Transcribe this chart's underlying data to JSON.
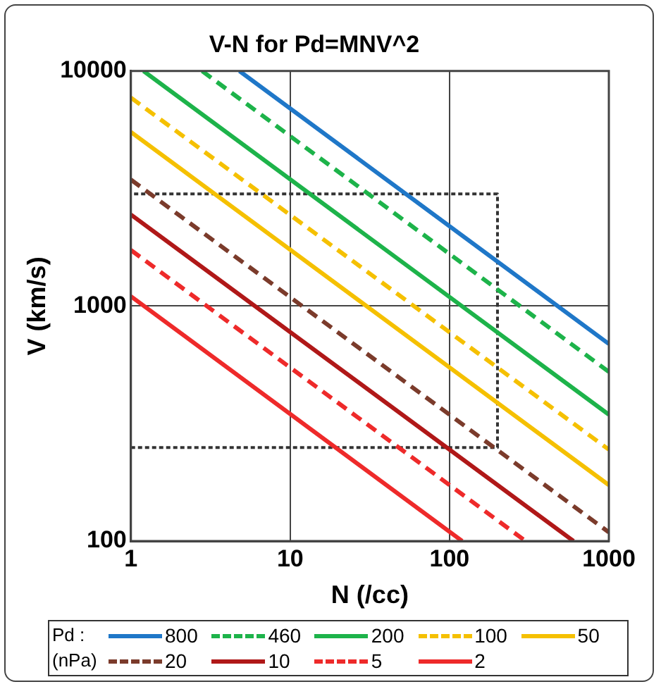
{
  "chart_data": {
    "type": "line",
    "title": "V-N for Pd=MNV^2",
    "xlabel": "N (/cc)",
    "ylabel": "V (km/s)",
    "legend_title": "Pd :\n(nPa)",
    "log": "xy",
    "grid": true,
    "legend": "bottom",
    "marker": "none",
    "xlim": [
      1,
      1000
    ],
    "xticks": [
      1,
      10,
      100,
      1000
    ],
    "ylim": [
      100,
      10000
    ],
    "yticks": [
      100,
      1000,
      10000
    ],
    "series": [
      {
        "name": "800",
        "color": "#1f77c8",
        "line_style": "solid",
        "x": [
          4.8,
          1000
        ],
        "values": [
          10000,
          690
        ]
      },
      {
        "name": "460",
        "color": "#1db34a",
        "line_style": "dashed",
        "x": [
          2.8,
          1000
        ],
        "values": [
          10000,
          525
        ]
      },
      {
        "name": "200",
        "color": "#1db34a",
        "line_style": "solid",
        "x": [
          1.2,
          1000
        ],
        "values": [
          10000,
          345
        ]
      },
      {
        "name": "100",
        "color": "#f5c000",
        "line_style": "dashed",
        "x": [
          1,
          1000
        ],
        "values": [
          7700,
          245
        ]
      },
      {
        "name": "50",
        "color": "#f5c000",
        "line_style": "solid",
        "x": [
          1,
          1000
        ],
        "values": [
          5500,
          173
        ]
      },
      {
        "name": "20",
        "color": "#7b3b2b",
        "line_style": "dashed",
        "x": [
          1,
          1000
        ],
        "values": [
          3450,
          109
        ]
      },
      {
        "name": "10",
        "color": "#b01818",
        "line_style": "solid",
        "x": [
          1,
          600
        ],
        "values": [
          2450,
          100
        ]
      },
      {
        "name": "5",
        "color": "#ee2a2a",
        "line_style": "dashed",
        "x": [
          1,
          300
        ],
        "values": [
          1730,
          100
        ]
      },
      {
        "name": "2",
        "color": "#ee2a2a",
        "line_style": "solid",
        "x": [
          1,
          120
        ],
        "values": [
          1100,
          100
        ]
      },
      {
        "color": "#333333",
        "line_style": "dotted",
        "x": [
          1,
          200,
          200,
          1
        ],
        "values": [
          250,
          250,
          3000,
          3000
        ]
      }
    ]
  }
}
